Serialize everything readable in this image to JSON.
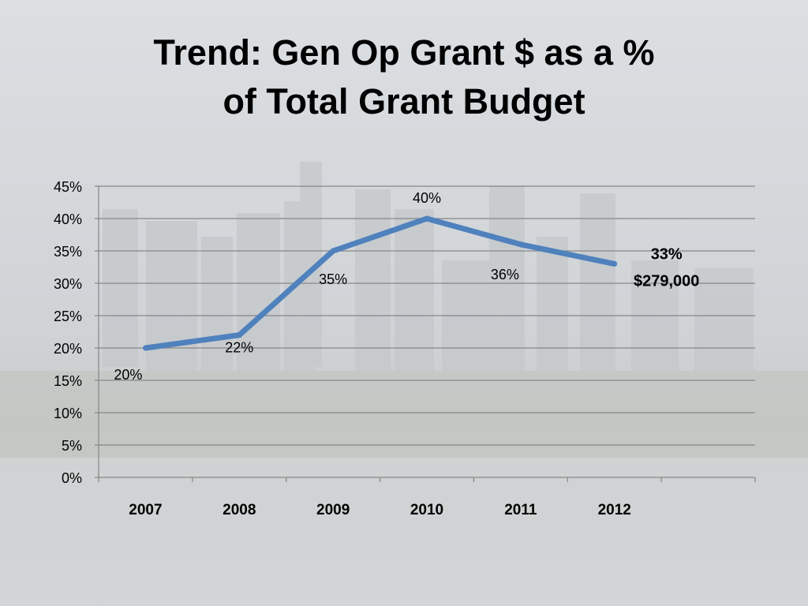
{
  "slide": {
    "title_line1": "Trend:  Gen Op Grant $ as a %",
    "title_line2": "of Total Grant Budget"
  },
  "colors": {
    "line": "#4f81bd",
    "grid": "#868686",
    "text": "#000000"
  },
  "chart_data": {
    "type": "line",
    "categories": [
      "2007",
      "2008",
      "2009",
      "2010",
      "2011",
      "2012"
    ],
    "series": [
      {
        "values": [
          20,
          22,
          35,
          40,
          36,
          33
        ]
      }
    ],
    "data_labels": [
      "20%",
      "22%",
      "35%",
      "40%",
      "36%",
      "33%"
    ],
    "last_point_annotation": "$279,000",
    "y_ticks": [
      "0%",
      "5%",
      "10%",
      "15%",
      "20%",
      "25%",
      "30%",
      "35%",
      "40%",
      "45%"
    ],
    "ylim": [
      0,
      45
    ],
    "grid": true,
    "legend": "none"
  }
}
